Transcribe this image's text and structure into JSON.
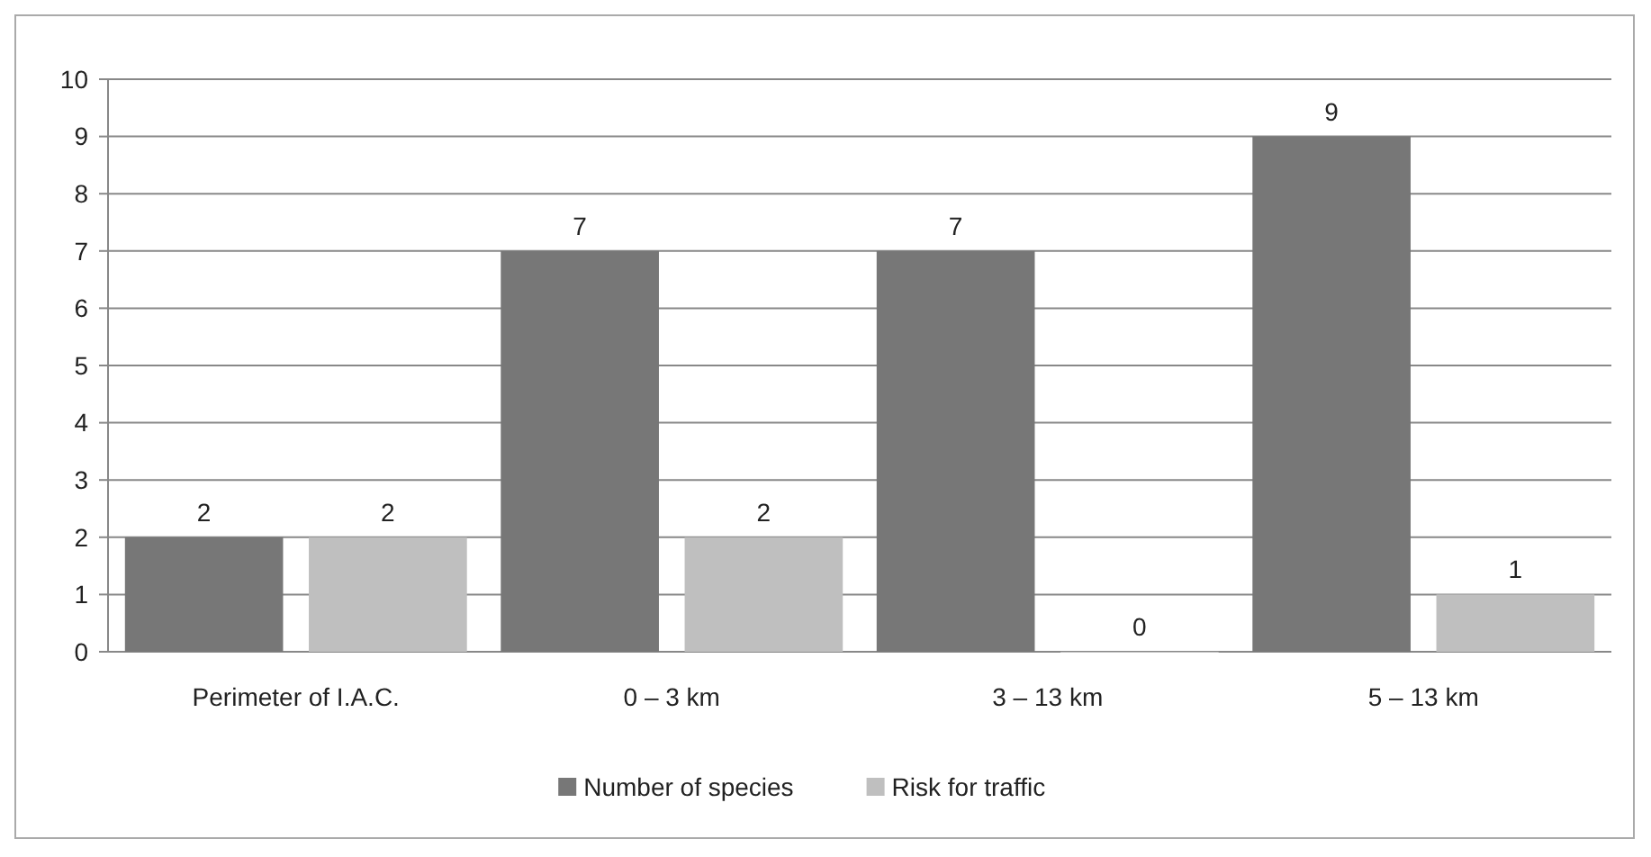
{
  "chart_data": {
    "type": "bar",
    "categories": [
      "Perimeter of I.A.C.",
      "0 – 3 km",
      "3 – 13 km",
      "5 – 13 km"
    ],
    "series": [
      {
        "name": "Number of species",
        "color": "#777777",
        "values": [
          2,
          7,
          7,
          9
        ]
      },
      {
        "name": "Risk for traffic",
        "color": "#bfbfbf",
        "values": [
          2,
          2,
          0,
          1
        ]
      }
    ],
    "ylim": [
      0,
      10
    ],
    "yticks": [
      0,
      1,
      2,
      3,
      4,
      5,
      6,
      7,
      8,
      9,
      10
    ],
    "grid": "y",
    "legend": "bottom",
    "data_labels": true
  }
}
